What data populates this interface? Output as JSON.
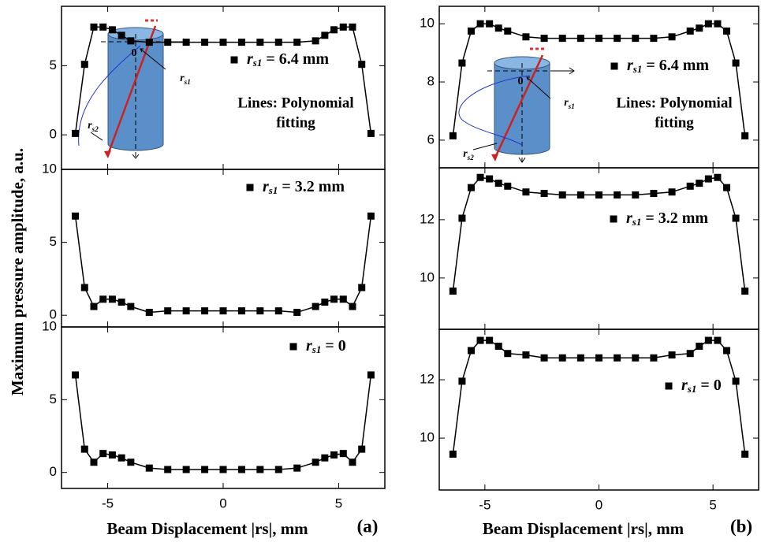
{
  "figure": {
    "ylabel": "Maximum pressure amplitude, a.u."
  },
  "chart_data": [
    {
      "type": "scatter",
      "x": [
        -6.4,
        -6.0,
        -5.6,
        -5.2,
        -4.8,
        -4.4,
        -4.0,
        -3.2,
        -2.4,
        -1.6,
        -0.8,
        0,
        0.8,
        1.6,
        2.4,
        3.2,
        4.0,
        4.4,
        4.8,
        5.2,
        5.6,
        6.0,
        6.4
      ],
      "series": [
        {
          "name": "rs1 = 6.4 mm",
          "color": "#000000",
          "values": [
            0.1,
            5.1,
            7.8,
            7.8,
            7.6,
            7.2,
            6.8,
            6.7,
            6.7,
            6.7,
            6.7,
            6.7,
            6.7,
            6.7,
            6.7,
            6.7,
            6.8,
            7.2,
            7.6,
            7.8,
            7.8,
            5.1,
            0.1
          ]
        }
      ],
      "xlim": [
        -7,
        7
      ],
      "xticks": [
        -5,
        0,
        5
      ],
      "ylim": [
        -2.5,
        9.3
      ],
      "yticks": [
        0,
        5
      ],
      "annotation": [
        "Lines: Polynomial",
        "fitting"
      ],
      "inset_labels": [
        "0",
        "rs1",
        "rs2"
      ]
    },
    {
      "type": "scatter",
      "x": [
        -6.4,
        -6.0,
        -5.6,
        -5.2,
        -4.8,
        -4.4,
        -4.0,
        -3.2,
        -2.4,
        -1.6,
        -0.8,
        0,
        0.8,
        1.6,
        2.4,
        3.2,
        4.0,
        4.4,
        4.8,
        5.2,
        5.6,
        6.0,
        6.4
      ],
      "series": [
        {
          "name": "rs1 = 3.2 mm",
          "color": "#000000",
          "values": [
            6.8,
            1.9,
            0.6,
            1.1,
            1.1,
            0.9,
            0.6,
            0.2,
            0.3,
            0.3,
            0.3,
            0.3,
            0.3,
            0.3,
            0.3,
            0.2,
            0.6,
            0.9,
            1.1,
            1.1,
            0.6,
            1.9,
            6.8
          ]
        }
      ],
      "xlim": [
        -7,
        7
      ],
      "xticks": [
        -5,
        0,
        5
      ],
      "ylim": [
        -0.8,
        10
      ],
      "yticks": [
        0,
        5,
        10
      ]
    },
    {
      "type": "scatter",
      "x": [
        -6.4,
        -6.0,
        -5.6,
        -5.2,
        -4.8,
        -4.4,
        -4.0,
        -3.2,
        -2.4,
        -1.6,
        -0.8,
        0,
        0.8,
        1.6,
        2.4,
        3.2,
        4.0,
        4.4,
        4.8,
        5.2,
        5.6,
        6.0,
        6.4
      ],
      "series": [
        {
          "name": "rs1 = 0",
          "color": "#000000",
          "values": [
            6.7,
            1.6,
            0.7,
            1.3,
            1.2,
            1.0,
            0.7,
            0.3,
            0.2,
            0.2,
            0.2,
            0.2,
            0.2,
            0.2,
            0.2,
            0.3,
            0.7,
            1.0,
            1.2,
            1.3,
            0.7,
            1.6,
            6.7
          ]
        }
      ],
      "xlim": [
        -7,
        7
      ],
      "xticks": [
        -5,
        0,
        5
      ],
      "ylim": [
        -1.1,
        10
      ],
      "yticks": [
        0,
        5,
        10
      ],
      "xlabel": "Beam Displacement |rs|, mm",
      "panel_label": "(a)"
    },
    {
      "type": "scatter",
      "x": [
        -6.4,
        -6.0,
        -5.6,
        -5.2,
        -4.8,
        -4.4,
        -4.0,
        -3.2,
        -2.4,
        -1.6,
        -0.8,
        0,
        0.8,
        1.6,
        2.4,
        3.2,
        4.0,
        4.4,
        4.8,
        5.2,
        5.6,
        6.0,
        6.4
      ],
      "series": [
        {
          "name": "rs1 = 6.4 mm",
          "color": "#000000",
          "values": [
            6.15,
            8.65,
            9.75,
            10.0,
            10.0,
            9.85,
            9.75,
            9.55,
            9.5,
            9.5,
            9.5,
            9.5,
            9.5,
            9.5,
            9.5,
            9.55,
            9.75,
            9.85,
            10.0,
            10.0,
            9.75,
            8.65,
            6.15
          ]
        }
      ],
      "xlim": [
        -7,
        7
      ],
      "xticks": [
        -5,
        0,
        5
      ],
      "ylim": [
        5.05,
        10.6
      ],
      "yticks": [
        6,
        8,
        10
      ],
      "annotation": [
        "Lines: Polynomial",
        "fitting"
      ],
      "inset_labels": [
        "0",
        "rs1",
        "rs2"
      ]
    },
    {
      "type": "scatter",
      "x": [
        -6.4,
        -6.0,
        -5.6,
        -5.2,
        -4.8,
        -4.4,
        -4.0,
        -3.2,
        -2.4,
        -1.6,
        -0.8,
        0,
        0.8,
        1.6,
        2.4,
        3.2,
        4.0,
        4.4,
        4.8,
        5.2,
        5.6,
        6.0,
        6.4
      ],
      "series": [
        {
          "name": "rs1 = 3.2 mm",
          "color": "#000000",
          "values": [
            9.55,
            12.05,
            13.1,
            13.45,
            13.4,
            13.25,
            13.15,
            12.95,
            12.9,
            12.85,
            12.85,
            12.85,
            12.85,
            12.85,
            12.9,
            12.95,
            13.15,
            13.25,
            13.4,
            13.45,
            13.1,
            12.05,
            9.55
          ]
        }
      ],
      "xlim": [
        -7,
        7
      ],
      "xticks": [
        -5,
        0,
        5
      ],
      "ylim": [
        8.24,
        13.78
      ],
      "yticks": [
        10,
        12
      ]
    },
    {
      "type": "scatter",
      "x": [
        -6.4,
        -6.0,
        -5.6,
        -5.2,
        -4.8,
        -4.4,
        -4.0,
        -3.2,
        -2.4,
        -1.6,
        -0.8,
        0,
        0.8,
        1.6,
        2.4,
        3.2,
        4.0,
        4.4,
        4.8,
        5.2,
        5.6,
        6.0,
        6.4
      ],
      "series": [
        {
          "name": "rs1 = 0",
          "color": "#000000",
          "values": [
            9.45,
            11.95,
            13.0,
            13.35,
            13.35,
            13.15,
            12.9,
            12.85,
            12.75,
            12.75,
            12.75,
            12.75,
            12.75,
            12.75,
            12.75,
            12.85,
            12.9,
            13.15,
            13.35,
            13.35,
            13.0,
            11.95,
            9.45
          ]
        }
      ],
      "xlim": [
        -7,
        7
      ],
      "xticks": [
        -5,
        0,
        5
      ],
      "ylim": [
        8.22,
        13.73
      ],
      "yticks": [
        10,
        12
      ],
      "xlabel": "Beam Displacement |rs|, mm",
      "panel_label": "(b)"
    }
  ]
}
